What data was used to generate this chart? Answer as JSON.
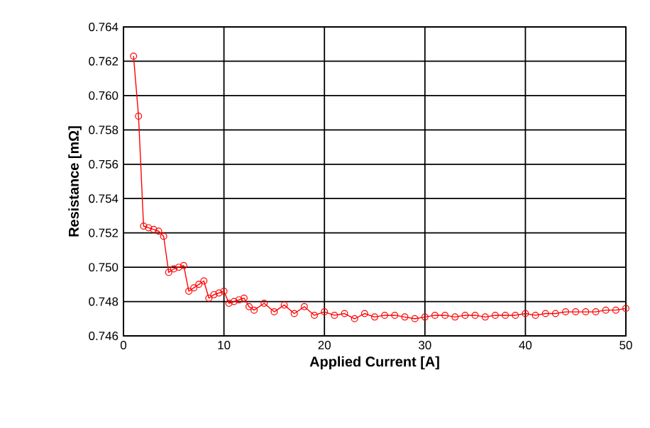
{
  "chart_data": {
    "type": "line",
    "xlabel": "Applied Current [A]",
    "ylabel": "Resistance [mΩ]",
    "x": [
      1,
      1.5,
      2,
      2.5,
      3,
      3.5,
      4,
      4.5,
      5,
      5.5,
      6,
      6.5,
      7,
      7.5,
      8,
      8.5,
      9,
      9.5,
      10,
      10.5,
      11,
      11.5,
      12,
      12.5,
      13,
      14,
      15,
      16,
      17,
      18,
      19,
      20,
      21,
      22,
      23,
      24,
      25,
      26,
      27,
      28,
      29,
      30,
      31,
      32,
      33,
      34,
      35,
      36,
      37,
      38,
      39,
      40,
      41,
      42,
      43,
      44,
      45,
      46,
      47,
      48,
      49,
      50
    ],
    "values": [
      0.7623,
      0.7588,
      0.7524,
      0.7523,
      0.7522,
      0.7521,
      0.7518,
      0.7497,
      0.7499,
      0.75,
      0.7501,
      0.7486,
      0.7488,
      0.749,
      0.7492,
      0.7482,
      0.7484,
      0.7485,
      0.7486,
      0.7479,
      0.748,
      0.7481,
      0.7482,
      0.7477,
      0.7475,
      0.7479,
      0.7474,
      0.7478,
      0.7473,
      0.7477,
      0.7472,
      0.7474,
      0.7472,
      0.7473,
      0.747,
      0.7473,
      0.7471,
      0.7472,
      0.7472,
      0.7471,
      0.747,
      0.7471,
      0.7472,
      0.7472,
      0.7471,
      0.7472,
      0.7472,
      0.7471,
      0.7472,
      0.7472,
      0.7472,
      0.7473,
      0.7472,
      0.7473,
      0.7473,
      0.7474,
      0.7474,
      0.7474,
      0.7474,
      0.7475,
      0.7475,
      0.7476
    ],
    "color": "#ff0000",
    "marker": "circle",
    "grid": true,
    "xlim": [
      0,
      50
    ],
    "xticks": [
      0,
      10,
      20,
      30,
      40,
      50
    ],
    "ylim": [
      0.746,
      0.764
    ],
    "yticks": [
      0.746,
      0.748,
      {
        "value": 0.75,
        "label": "0.750"
      },
      0.752,
      0.754,
      0.756,
      0.758,
      {
        "value": 0.76,
        "label": "0.760"
      },
      0.762,
      0.764
    ]
  }
}
